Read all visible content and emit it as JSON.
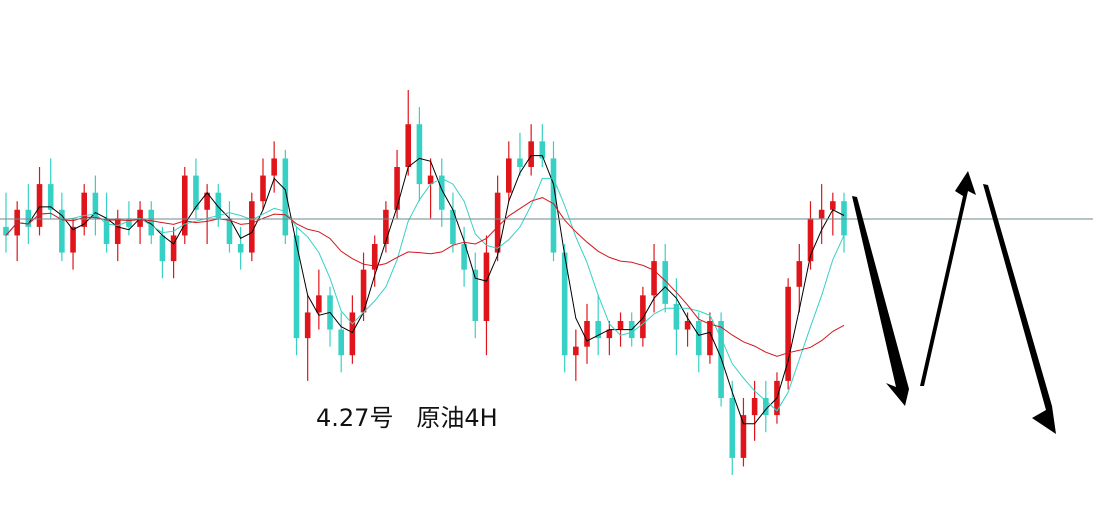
{
  "chart_data": {
    "type": "candlestick",
    "caption": "4.27号   原油4H",
    "horizontal_line": true,
    "colors": {
      "up": "#e0151b",
      "down": "#36d1c4",
      "ma_fast": "#000000",
      "ma_mid": "#36d1c4",
      "ma_slow": "#d4161c",
      "hline": "#6f8a8c",
      "arrow": "#000000"
    },
    "candles": [
      {
        "o": 286,
        "h": 290,
        "l": 283,
        "c": 285
      },
      {
        "o": 285,
        "h": 289,
        "l": 282,
        "c": 288
      },
      {
        "o": 288,
        "h": 291,
        "l": 284,
        "c": 286
      },
      {
        "o": 286,
        "h": 293,
        "l": 285,
        "c": 291
      },
      {
        "o": 291,
        "h": 294,
        "l": 287,
        "c": 288
      },
      {
        "o": 288,
        "h": 290,
        "l": 282,
        "c": 283
      },
      {
        "o": 283,
        "h": 287,
        "l": 281,
        "c": 286
      },
      {
        "o": 286,
        "h": 291,
        "l": 285,
        "c": 290
      },
      {
        "o": 290,
        "h": 292,
        "l": 285,
        "c": 287
      },
      {
        "o": 287,
        "h": 290,
        "l": 283,
        "c": 284
      },
      {
        "o": 284,
        "h": 288,
        "l": 282,
        "c": 287
      },
      {
        "o": 287,
        "h": 289,
        "l": 285,
        "c": 286
      },
      {
        "o": 286,
        "h": 289,
        "l": 284,
        "c": 288
      },
      {
        "o": 288,
        "h": 289,
        "l": 284,
        "c": 285
      },
      {
        "o": 285,
        "h": 286,
        "l": 280,
        "c": 282
      },
      {
        "o": 282,
        "h": 286,
        "l": 280,
        "c": 285
      },
      {
        "o": 285,
        "h": 293,
        "l": 284,
        "c": 292
      },
      {
        "o": 292,
        "h": 294,
        "l": 287,
        "c": 288
      },
      {
        "o": 288,
        "h": 291,
        "l": 284,
        "c": 290
      },
      {
        "o": 290,
        "h": 291,
        "l": 286,
        "c": 287
      },
      {
        "o": 287,
        "h": 289,
        "l": 283,
        "c": 284
      },
      {
        "o": 284,
        "h": 286,
        "l": 281,
        "c": 283
      },
      {
        "o": 283,
        "h": 290,
        "l": 282,
        "c": 289
      },
      {
        "o": 289,
        "h": 294,
        "l": 288,
        "c": 292
      },
      {
        "o": 292,
        "h": 296,
        "l": 290,
        "c": 294
      },
      {
        "o": 294,
        "h": 295,
        "l": 284,
        "c": 285
      },
      {
        "o": 285,
        "h": 286,
        "l": 271,
        "c": 273
      },
      {
        "o": 273,
        "h": 278,
        "l": 268,
        "c": 276
      },
      {
        "o": 276,
        "h": 281,
        "l": 274,
        "c": 278
      },
      {
        "o": 278,
        "h": 279,
        "l": 272,
        "c": 274
      },
      {
        "o": 274,
        "h": 276,
        "l": 269,
        "c": 271
      },
      {
        "o": 271,
        "h": 278,
        "l": 270,
        "c": 276
      },
      {
        "o": 276,
        "h": 283,
        "l": 275,
        "c": 281
      },
      {
        "o": 281,
        "h": 285,
        "l": 279,
        "c": 284
      },
      {
        "o": 284,
        "h": 289,
        "l": 283,
        "c": 288
      },
      {
        "o": 288,
        "h": 295,
        "l": 287,
        "c": 293
      },
      {
        "o": 293,
        "h": 302,
        "l": 292,
        "c": 298
      },
      {
        "o": 298,
        "h": 300,
        "l": 289,
        "c": 291
      },
      {
        "o": 291,
        "h": 294,
        "l": 287,
        "c": 292
      },
      {
        "o": 292,
        "h": 294,
        "l": 286,
        "c": 288
      },
      {
        "o": 288,
        "h": 290,
        "l": 283,
        "c": 284
      },
      {
        "o": 284,
        "h": 286,
        "l": 279,
        "c": 281
      },
      {
        "o": 281,
        "h": 283,
        "l": 273,
        "c": 275
      },
      {
        "o": 275,
        "h": 285,
        "l": 271,
        "c": 283
      },
      {
        "o": 283,
        "h": 292,
        "l": 282,
        "c": 290
      },
      {
        "o": 290,
        "h": 296,
        "l": 289,
        "c": 294
      },
      {
        "o": 294,
        "h": 297,
        "l": 292,
        "c": 293
      },
      {
        "o": 293,
        "h": 298,
        "l": 292,
        "c": 296
      },
      {
        "o": 296,
        "h": 298,
        "l": 293,
        "c": 294
      },
      {
        "o": 294,
        "h": 296,
        "l": 282,
        "c": 283
      },
      {
        "o": 283,
        "h": 284,
        "l": 269,
        "c": 271
      },
      {
        "o": 271,
        "h": 274,
        "l": 268,
        "c": 272
      },
      {
        "o": 272,
        "h": 277,
        "l": 270,
        "c": 275
      },
      {
        "o": 275,
        "h": 278,
        "l": 271,
        "c": 273
      },
      {
        "o": 273,
        "h": 275,
        "l": 271,
        "c": 274
      },
      {
        "o": 274,
        "h": 276,
        "l": 272,
        "c": 275
      },
      {
        "o": 275,
        "h": 276,
        "l": 272,
        "c": 273
      },
      {
        "o": 273,
        "h": 279,
        "l": 272,
        "c": 278
      },
      {
        "o": 278,
        "h": 284,
        "l": 276,
        "c": 282
      },
      {
        "o": 282,
        "h": 284,
        "l": 276,
        "c": 277
      },
      {
        "o": 277,
        "h": 280,
        "l": 271,
        "c": 274
      },
      {
        "o": 274,
        "h": 276,
        "l": 272,
        "c": 275
      },
      {
        "o": 275,
        "h": 276,
        "l": 269,
        "c": 271
      },
      {
        "o": 271,
        "h": 276,
        "l": 270,
        "c": 275
      },
      {
        "o": 275,
        "h": 276,
        "l": 265,
        "c": 266
      },
      {
        "o": 266,
        "h": 268,
        "l": 257,
        "c": 259
      },
      {
        "o": 259,
        "h": 266,
        "l": 258,
        "c": 264
      },
      {
        "o": 264,
        "h": 268,
        "l": 261,
        "c": 266
      },
      {
        "o": 266,
        "h": 268,
        "l": 262,
        "c": 264
      },
      {
        "o": 264,
        "h": 269,
        "l": 263,
        "c": 268
      },
      {
        "o": 268,
        "h": 280,
        "l": 267,
        "c": 279
      },
      {
        "o": 279,
        "h": 284,
        "l": 276,
        "c": 282
      },
      {
        "o": 282,
        "h": 289,
        "l": 281,
        "c": 287
      },
      {
        "o": 287,
        "h": 291,
        "l": 284,
        "c": 288
      },
      {
        "o": 288,
        "h": 290,
        "l": 285,
        "c": 289
      },
      {
        "o": 289,
        "h": 290,
        "l": 283,
        "c": 285
      }
    ],
    "projection_arrows": [
      {
        "direction": "down"
      },
      {
        "direction": "up"
      },
      {
        "direction": "down"
      }
    ]
  }
}
